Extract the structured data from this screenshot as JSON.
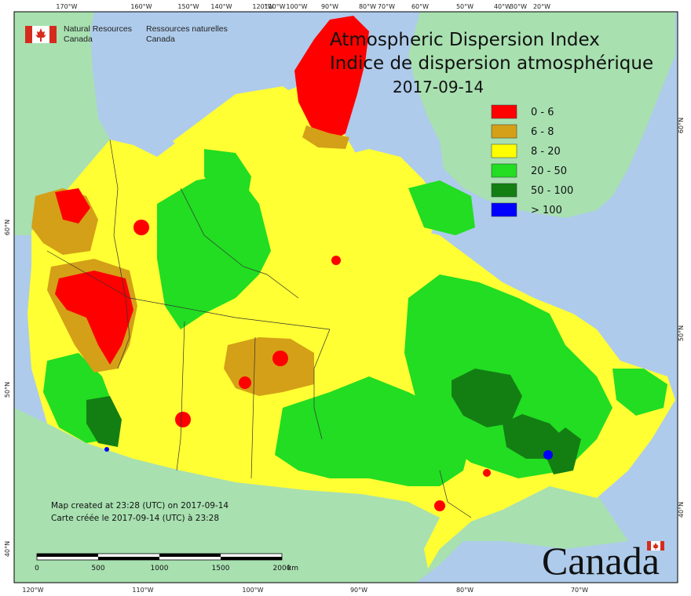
{
  "map": {
    "title_en": "Atmospheric Dispersion Index",
    "title_fr": "Indice de dispersion atmosphérique",
    "date": "2017-09-14"
  },
  "agency": {
    "en_line1": "Natural Resources",
    "en_line2": "Canada",
    "fr_line1": "Ressources naturelles",
    "fr_line2": "Canada"
  },
  "legend": {
    "items": [
      {
        "label": "0 - 6",
        "color": "#ff0000"
      },
      {
        "label": "6 - 8",
        "color": "#d4a017"
      },
      {
        "label": "8 - 20",
        "color": "#ffff00"
      },
      {
        "label": "20 - 50",
        "color": "#22dd22"
      },
      {
        "label": "50 - 100",
        "color": "#137f13"
      },
      {
        "label": "> 100",
        "color": "#0000ff"
      }
    ]
  },
  "notes": {
    "created_en": "Map created at 23:28 (UTC) on 2017-09-14",
    "created_fr": "Carte créée le 2017-09-14 (UTC) à 23:28"
  },
  "scale_bar": {
    "labels": [
      "0",
      "500",
      "1000",
      "1500",
      "2000"
    ],
    "unit": "km"
  },
  "wordmark": "Canada",
  "graticule": {
    "top": [
      "170°W",
      "160°W",
      "150°W",
      "140°W",
      "120°W",
      "110°W",
      "100°W",
      "90°W",
      "80°W",
      "70°W",
      "60°W",
      "50°W",
      "40°W",
      "30°W",
      "20°W"
    ],
    "bottom": [
      "120°W",
      "110°W",
      "100°W",
      "90°W",
      "80°W",
      "70°W"
    ],
    "left": [
      "60°N",
      "50°N",
      "40°N"
    ],
    "right": [
      "60°N",
      "50°N",
      "40°N"
    ]
  },
  "colors": {
    "ocean": "#aecbeb",
    "foreign_land": "#a8e0b0"
  }
}
